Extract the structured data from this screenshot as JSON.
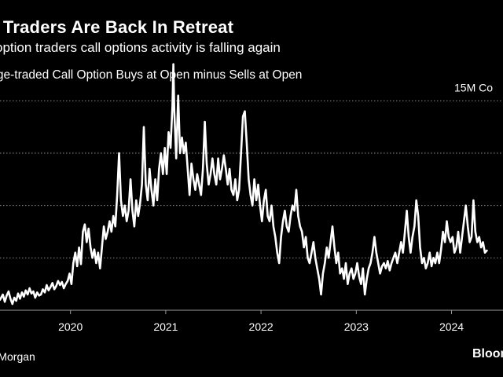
{
  "chart_data": {
    "type": "line",
    "title": "il Traders Are Back In Retreat",
    "subtitle": "option traders call options activity is falling again",
    "series_label": "hange-traded Call Option Buys at Open minus Sells at Open",
    "gridline_labels": [
      {
        "value": 15,
        "label": "15M Co"
      }
    ],
    "gridlines": [
      0,
      5,
      10,
      15
    ],
    "xlabel": "",
    "ylabel": "",
    "xlim": [
      2019.26,
      2024.54
    ],
    "ylim": [
      -5,
      19
    ],
    "x_ticks": [
      {
        "x": 2020,
        "label": "2020"
      },
      {
        "x": 2021,
        "label": "2021"
      },
      {
        "x": 2022,
        "label": "2022"
      },
      {
        "x": 2023,
        "label": "2023"
      },
      {
        "x": 2024,
        "label": "2024"
      }
    ],
    "series": [
      {
        "name": "Call Option Buys at Open minus Sells at Open",
        "color": "#ffffff",
        "points": [
          [
            2019.26,
            -4.0
          ],
          [
            2019.29,
            -3.5
          ],
          [
            2019.31,
            -4.2
          ],
          [
            2019.33,
            -3.6
          ],
          [
            2019.35,
            -3.2
          ],
          [
            2019.37,
            -3.9
          ],
          [
            2019.39,
            -4.4
          ],
          [
            2019.41,
            -3.8
          ],
          [
            2019.43,
            -4.1
          ],
          [
            2019.45,
            -3.4
          ],
          [
            2019.47,
            -3.9
          ],
          [
            2019.49,
            -3.3
          ],
          [
            2019.51,
            -3.7
          ],
          [
            2019.53,
            -3.1
          ],
          [
            2019.55,
            -3.5
          ],
          [
            2019.57,
            -2.9
          ],
          [
            2019.59,
            -3.4
          ],
          [
            2019.61,
            -3.2
          ],
          [
            2019.63,
            -3.8
          ],
          [
            2019.65,
            -3.3
          ],
          [
            2019.67,
            -3.6
          ],
          [
            2019.69,
            -3.5
          ],
          [
            2019.71,
            -3.0
          ],
          [
            2019.73,
            -3.3
          ],
          [
            2019.75,
            -2.6
          ],
          [
            2019.77,
            -3.1
          ],
          [
            2019.79,
            -2.8
          ],
          [
            2019.81,
            -2.4
          ],
          [
            2019.83,
            -3.0
          ],
          [
            2019.85,
            -2.7
          ],
          [
            2019.87,
            -2.2
          ],
          [
            2019.89,
            -2.6
          ],
          [
            2019.91,
            -2.3
          ],
          [
            2019.93,
            -2.9
          ],
          [
            2019.95,
            -2.5
          ],
          [
            2019.97,
            -2.2
          ],
          [
            2019.99,
            -1.5
          ],
          [
            2020.01,
            -2.5
          ],
          [
            2020.03,
            -0.5
          ],
          [
            2020.05,
            0.5
          ],
          [
            2020.07,
            -0.8
          ],
          [
            2020.09,
            1.0
          ],
          [
            2020.11,
            -0.6
          ],
          [
            2020.13,
            2.5
          ],
          [
            2020.15,
            3.2
          ],
          [
            2020.17,
            1.5
          ],
          [
            2020.19,
            2.8
          ],
          [
            2020.21,
            1.0
          ],
          [
            2020.23,
            0.0
          ],
          [
            2020.25,
            0.8
          ],
          [
            2020.27,
            -0.5
          ],
          [
            2020.29,
            0.5
          ],
          [
            2020.31,
            -1.0
          ],
          [
            2020.33,
            1.0
          ],
          [
            2020.35,
            3.0
          ],
          [
            2020.37,
            1.8
          ],
          [
            2020.39,
            2.5
          ],
          [
            2020.41,
            3.5
          ],
          [
            2020.43,
            2.5
          ],
          [
            2020.45,
            4.0
          ],
          [
            2020.47,
            3.0
          ],
          [
            2020.49,
            6.0
          ],
          [
            2020.51,
            10.0
          ],
          [
            2020.53,
            5.5
          ],
          [
            2020.55,
            4.0
          ],
          [
            2020.57,
            5.0
          ],
          [
            2020.59,
            3.5
          ],
          [
            2020.61,
            4.5
          ],
          [
            2020.63,
            7.5
          ],
          [
            2020.65,
            4.5
          ],
          [
            2020.67,
            3.0
          ],
          [
            2020.69,
            5.5
          ],
          [
            2020.71,
            4.0
          ],
          [
            2020.73,
            5.2
          ],
          [
            2020.75,
            7.0
          ],
          [
            2020.77,
            12.5
          ],
          [
            2020.79,
            7.0
          ],
          [
            2020.81,
            5.5
          ],
          [
            2020.83,
            8.5
          ],
          [
            2020.85,
            6.5
          ],
          [
            2020.87,
            5.0
          ],
          [
            2020.89,
            7.5
          ],
          [
            2020.91,
            5.5
          ],
          [
            2020.93,
            8.5
          ],
          [
            2020.95,
            10.0
          ],
          [
            2020.97,
            8.0
          ],
          [
            2020.99,
            10.5
          ],
          [
            2021.01,
            8.0
          ],
          [
            2021.03,
            12.0
          ],
          [
            2021.05,
            10.5
          ],
          [
            2021.07,
            14.5
          ],
          [
            2021.08,
            18.5
          ],
          [
            2021.09,
            14.0
          ],
          [
            2021.11,
            9.5
          ],
          [
            2021.13,
            15.5
          ],
          [
            2021.15,
            10.0
          ],
          [
            2021.17,
            11.5
          ],
          [
            2021.19,
            10.0
          ],
          [
            2021.21,
            11.0
          ],
          [
            2021.23,
            8.5
          ],
          [
            2021.25,
            6.0
          ],
          [
            2021.27,
            9.0
          ],
          [
            2021.29,
            7.5
          ],
          [
            2021.31,
            6.5
          ],
          [
            2021.33,
            8.0
          ],
          [
            2021.35,
            7.0
          ],
          [
            2021.37,
            6.0
          ],
          [
            2021.39,
            8.5
          ],
          [
            2021.41,
            13.0
          ],
          [
            2021.43,
            9.0
          ],
          [
            2021.45,
            7.0
          ],
          [
            2021.47,
            8.0
          ],
          [
            2021.49,
            9.5
          ],
          [
            2021.51,
            8.0
          ],
          [
            2021.53,
            7.0
          ],
          [
            2021.55,
            9.5
          ],
          [
            2021.57,
            7.5
          ],
          [
            2021.59,
            8.5
          ],
          [
            2021.61,
            9.8
          ],
          [
            2021.63,
            8.5
          ],
          [
            2021.65,
            7.0
          ],
          [
            2021.67,
            8.5
          ],
          [
            2021.69,
            6.5
          ],
          [
            2021.71,
            6.0
          ],
          [
            2021.73,
            7.5
          ],
          [
            2021.75,
            5.5
          ],
          [
            2021.77,
            6.5
          ],
          [
            2021.79,
            10.0
          ],
          [
            2021.81,
            13.5
          ],
          [
            2021.83,
            14.0
          ],
          [
            2021.85,
            11.0
          ],
          [
            2021.87,
            7.5
          ],
          [
            2021.89,
            6.0
          ],
          [
            2021.91,
            5.0
          ],
          [
            2021.93,
            7.5
          ],
          [
            2021.95,
            5.5
          ],
          [
            2021.97,
            7.0
          ],
          [
            2021.99,
            5.0
          ],
          [
            2022.01,
            3.5
          ],
          [
            2022.03,
            5.5
          ],
          [
            2022.05,
            6.5
          ],
          [
            2022.07,
            4.0
          ],
          [
            2022.09,
            3.5
          ],
          [
            2022.11,
            5.0
          ],
          [
            2022.13,
            3.0
          ],
          [
            2022.15,
            2.0
          ],
          [
            2022.17,
            0.5
          ],
          [
            2022.19,
            -0.5
          ],
          [
            2022.21,
            2.0
          ],
          [
            2022.23,
            3.5
          ],
          [
            2022.25,
            4.5
          ],
          [
            2022.27,
            3.0
          ],
          [
            2022.29,
            2.5
          ],
          [
            2022.31,
            4.0
          ],
          [
            2022.33,
            5.0
          ],
          [
            2022.35,
            4.5
          ],
          [
            2022.37,
            6.5
          ],
          [
            2022.39,
            4.0
          ],
          [
            2022.41,
            3.0
          ],
          [
            2022.43,
            2.5
          ],
          [
            2022.45,
            1.0
          ],
          [
            2022.47,
            2.0
          ],
          [
            2022.49,
            0.0
          ],
          [
            2022.51,
            -0.5
          ],
          [
            2022.53,
            0.5
          ],
          [
            2022.55,
            1.5
          ],
          [
            2022.57,
            0.0
          ],
          [
            2022.59,
            -1.0
          ],
          [
            2022.61,
            -2.0
          ],
          [
            2022.63,
            -3.5
          ],
          [
            2022.65,
            -1.5
          ],
          [
            2022.67,
            -0.5
          ],
          [
            2022.69,
            1.0
          ],
          [
            2022.71,
            0.0
          ],
          [
            2022.73,
            1.5
          ],
          [
            2022.75,
            3.0
          ],
          [
            2022.77,
            1.0
          ],
          [
            2022.79,
            -0.5
          ],
          [
            2022.81,
            0.5
          ],
          [
            2022.83,
            -1.5
          ],
          [
            2022.85,
            -1.0
          ],
          [
            2022.87,
            -2.0
          ],
          [
            2022.89,
            -0.5
          ],
          [
            2022.91,
            -2.5
          ],
          [
            2022.93,
            -1.5
          ],
          [
            2022.95,
            -1.0
          ],
          [
            2022.97,
            -2.0
          ],
          [
            2022.99,
            -1.5
          ],
          [
            2023.01,
            -0.5
          ],
          [
            2023.03,
            -1.8
          ],
          [
            2023.05,
            -2.5
          ],
          [
            2023.07,
            -1.0
          ],
          [
            2023.09,
            -3.5
          ],
          [
            2023.11,
            -2.0
          ],
          [
            2023.13,
            -1.0
          ],
          [
            2023.15,
            -0.5
          ],
          [
            2023.17,
            0.5
          ],
          [
            2023.19,
            2.0
          ],
          [
            2023.21,
            0.5
          ],
          [
            2023.23,
            -0.5
          ],
          [
            2023.25,
            -1.5
          ],
          [
            2023.27,
            -0.8
          ],
          [
            2023.29,
            -0.5
          ],
          [
            2023.31,
            -1.0
          ],
          [
            2023.33,
            -0.3
          ],
          [
            2023.35,
            -1.2
          ],
          [
            2023.37,
            -0.5
          ],
          [
            2023.39,
            0.0
          ],
          [
            2023.41,
            0.5
          ],
          [
            2023.43,
            -0.5
          ],
          [
            2023.45,
            0.5
          ],
          [
            2023.47,
            1.5
          ],
          [
            2023.49,
            0.5
          ],
          [
            2023.51,
            2.5
          ],
          [
            2023.53,
            4.5
          ],
          [
            2023.55,
            2.0
          ],
          [
            2023.57,
            0.5
          ],
          [
            2023.59,
            2.0
          ],
          [
            2023.61,
            3.0
          ],
          [
            2023.63,
            5.5
          ],
          [
            2023.65,
            4.0
          ],
          [
            2023.67,
            1.0
          ],
          [
            2023.69,
            -0.5
          ],
          [
            2023.71,
            0.0
          ],
          [
            2023.73,
            -1.0
          ],
          [
            2023.75,
            -0.5
          ],
          [
            2023.77,
            0.5
          ],
          [
            2023.79,
            -0.8
          ],
          [
            2023.81,
            0.0
          ],
          [
            2023.83,
            -0.5
          ],
          [
            2023.85,
            0.5
          ],
          [
            2023.87,
            -0.5
          ],
          [
            2023.89,
            0.8
          ],
          [
            2023.91,
            2.5
          ],
          [
            2023.93,
            1.5
          ],
          [
            2023.95,
            3.5
          ],
          [
            2023.97,
            2.0
          ],
          [
            2023.99,
            1.5
          ],
          [
            2024.01,
            2.0
          ],
          [
            2024.03,
            0.5
          ],
          [
            2024.05,
            1.0
          ],
          [
            2024.07,
            2.5
          ],
          [
            2024.09,
            0.5
          ],
          [
            2024.11,
            2.0
          ],
          [
            2024.13,
            3.5
          ],
          [
            2024.15,
            5.0
          ],
          [
            2024.17,
            3.0
          ],
          [
            2024.19,
            1.5
          ],
          [
            2024.21,
            2.0
          ],
          [
            2024.23,
            5.5
          ],
          [
            2024.25,
            2.5
          ],
          [
            2024.27,
            1.5
          ],
          [
            2024.29,
            2.0
          ],
          [
            2024.31,
            1.0
          ],
          [
            2024.33,
            1.5
          ],
          [
            2024.35,
            0.5
          ],
          [
            2024.37,
            0.7
          ]
        ]
      }
    ]
  },
  "footer": {
    "source": "PMorgan",
    "logo": "Bloom"
  }
}
